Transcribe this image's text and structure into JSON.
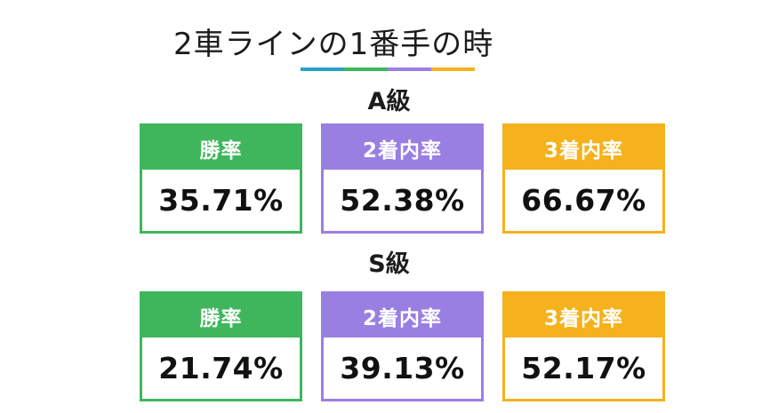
{
  "title": "2車ラインの1番手の時",
  "underline_colors": [
    "#2aa0c8",
    "#3fb65b",
    "#9a7fe3",
    "#f5b21c"
  ],
  "colors": {
    "green": "#3fb65b",
    "purple": "#9a7fe3",
    "orange": "#f5b21c"
  },
  "sections": [
    {
      "grade": "A級",
      "stats": [
        {
          "label": "勝率",
          "value": "35.71%"
        },
        {
          "label": "2着内率",
          "value": "52.38%"
        },
        {
          "label": "3着内率",
          "value": "66.67%"
        }
      ]
    },
    {
      "grade": "S級",
      "stats": [
        {
          "label": "勝率",
          "value": "21.74%"
        },
        {
          "label": "2着内率",
          "value": "39.13%"
        },
        {
          "label": "3着内率",
          "value": "52.17%"
        }
      ]
    }
  ]
}
